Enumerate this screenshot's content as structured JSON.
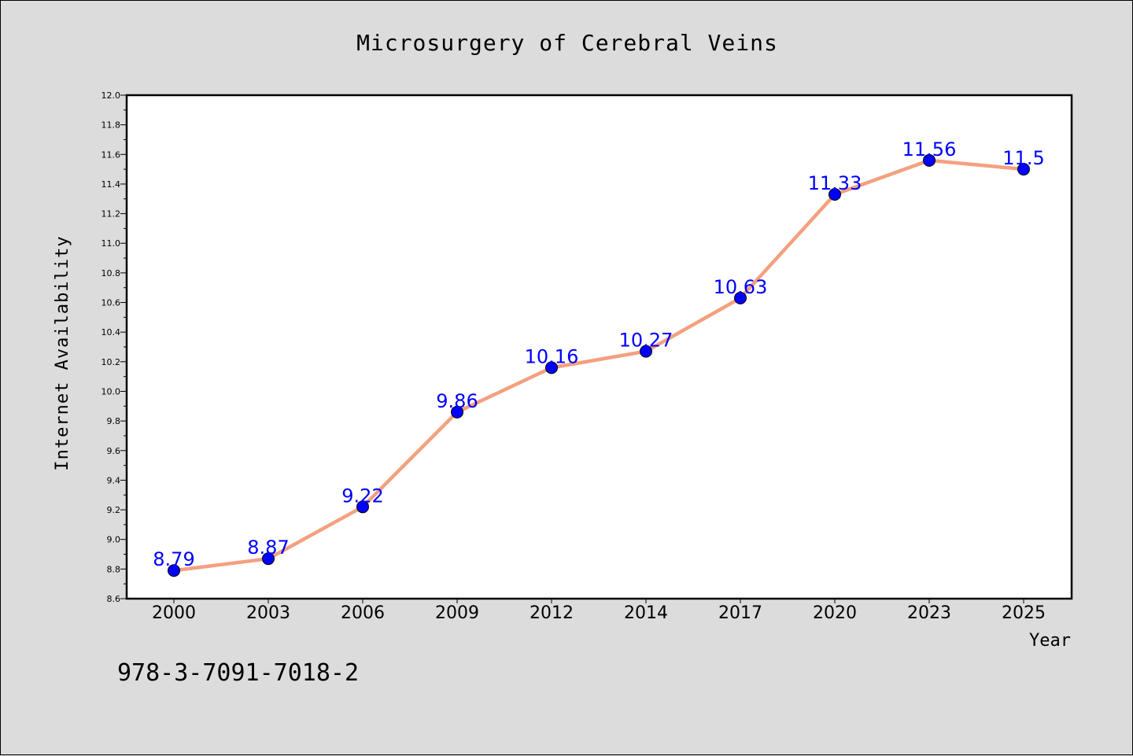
{
  "chart_data": {
    "type": "line",
    "title": "Microsurgery of Cerebral Veins",
    "xlabel": "Year",
    "ylabel": "Internet Availability",
    "categories": [
      "2000",
      "2003",
      "2006",
      "2009",
      "2012",
      "2014",
      "2017",
      "2020",
      "2023",
      "2025"
    ],
    "series": [
      {
        "values": [
          8.79,
          8.87,
          9.22,
          9.86,
          10.16,
          10.27,
          10.63,
          11.33,
          11.56,
          11.5
        ],
        "data_labels": [
          "8.79",
          "8.87",
          "9.22",
          "9.86",
          "10.16",
          "10.27",
          "10.63",
          "11.33",
          "11.56",
          "11.5"
        ]
      }
    ],
    "ylim": [
      8.6,
      12.0
    ],
    "yticks": [
      "8.6",
      "8.8",
      "9.0",
      "9.2",
      "9.4",
      "9.6",
      "9.8",
      "10.0",
      "10.2",
      "10.4",
      "10.6",
      "10.8",
      "11.0",
      "11.2",
      "11.4",
      "11.6",
      "11.8",
      "12.0"
    ],
    "grid": false,
    "colors": {
      "line": "#f4a07f",
      "marker": "#0000ff",
      "data_label": "#0000ff",
      "background": "#dcdcdc",
      "plot_bg": "#ffffff"
    }
  },
  "footer": {
    "isbn": "978-3-7091-7018-2"
  }
}
